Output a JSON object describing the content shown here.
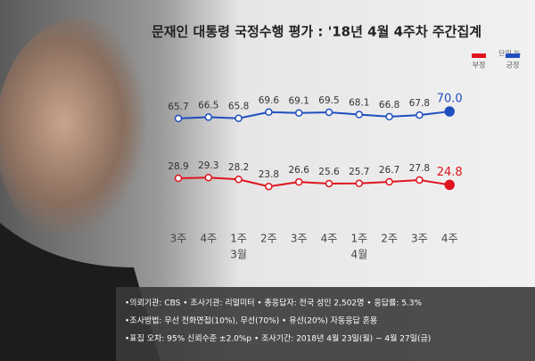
{
  "chart_data": {
    "type": "line",
    "title": "문재인 대통령 국정수행 평가 : '18년 4월 4주차 주간집계",
    "unit_label": "단위 %",
    "categories": [
      "3주",
      "4주",
      "1주",
      "2주",
      "3주",
      "4주",
      "1주",
      "2주",
      "3주",
      "4주"
    ],
    "category_groups": [
      null,
      null,
      "3월",
      null,
      null,
      null,
      "4월",
      null,
      null,
      null
    ],
    "series": [
      {
        "name": "긍정",
        "color": "#1f4fbf",
        "values": [
          65.7,
          66.5,
          65.8,
          69.6,
          69.1,
          69.5,
          68.1,
          66.8,
          67.8,
          70.0
        ],
        "value_labels": [
          "65.7",
          "66.5",
          "65.8",
          "69.6",
          "69.1",
          "69.5",
          "68.1",
          "66.8",
          "67.8",
          "70.0"
        ]
      },
      {
        "name": "부정",
        "color": "#e0141e",
        "values": [
          28.9,
          29.3,
          28.2,
          23.8,
          26.6,
          25.6,
          25.7,
          26.7,
          27.8,
          24.8
        ],
        "value_labels": [
          "28.9",
          "29.3",
          "28.2",
          "23.8",
          "26.6",
          "25.6",
          "25.7",
          "26.7",
          "27.8",
          "24.8"
        ]
      }
    ],
    "notes": [
      "•의뢰기관: CBS • 조사기관: 리얼미터 • 총응답자: 전국 성인 2,502명 • 응답률: 5.3%",
      "•조사방법: 무선 전화면접(10%), 무선(70%) • 유선(20%) 자동응답 혼용",
      "•표집 오차: 95% 신뢰수준 ±2.0%p • 조사기간: 2018년 4월 23일(월) ~ 4월 27일(금)"
    ]
  }
}
